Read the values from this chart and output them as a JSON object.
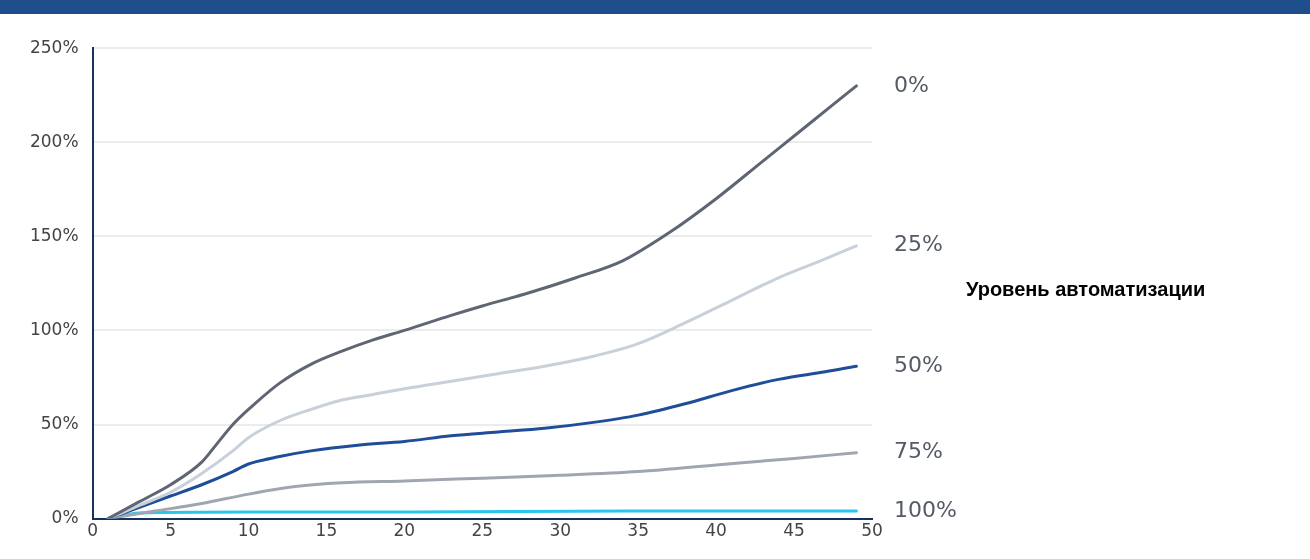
{
  "chart_data": {
    "type": "line",
    "legend_title": "Уровень автоматизации",
    "xlim": [
      0,
      50
    ],
    "xticks": [
      0,
      5,
      10,
      15,
      20,
      25,
      30,
      35,
      40,
      45,
      50
    ],
    "ylim": [
      0,
      250
    ],
    "yticks": [
      {
        "value": 0,
        "label": "0%"
      },
      {
        "value": 50,
        "label": "50%"
      },
      {
        "value": 100,
        "label": "100%"
      },
      {
        "value": 150,
        "label": "150%"
      },
      {
        "value": 200,
        "label": "200%"
      },
      {
        "value": 250,
        "label": "250%"
      }
    ],
    "grid": "y",
    "legend": false,
    "marker": "none",
    "line_style": "solid",
    "series": [
      {
        "name": "0%",
        "color": "#5f6673",
        "x": [
          1,
          3,
          5,
          7,
          8,
          9,
          10,
          12,
          14,
          16,
          18,
          20,
          23,
          25,
          28,
          31,
          34,
          37,
          40,
          43,
          46,
          49
        ],
        "values": [
          0,
          9,
          18,
          30,
          40,
          50,
          58,
          72,
          82,
          89,
          95,
          100,
          108,
          113,
          120,
          128,
          137,
          152,
          170,
          190,
          210,
          230
        ]
      },
      {
        "name": "25%",
        "color": "#c8d0da",
        "x": [
          1,
          3,
          5,
          7,
          9,
          10,
          12,
          14,
          16,
          18,
          20,
          23,
          26,
          29,
          32,
          35,
          38,
          41,
          44,
          47,
          49
        ],
        "values": [
          0,
          7,
          14,
          24,
          36,
          43,
          52,
          58,
          63,
          66,
          69,
          73,
          77,
          81,
          86,
          93,
          104,
          116,
          128,
          138,
          145
        ]
      },
      {
        "name": "50%",
        "color": "#1f4e99",
        "x": [
          1,
          3,
          5,
          7,
          9,
          10,
          12,
          14,
          17,
          20,
          23,
          26,
          29,
          32,
          35,
          38,
          41,
          44,
          47,
          49
        ],
        "values": [
          0,
          6,
          12,
          18,
          25,
          29,
          33,
          36,
          39,
          41,
          44,
          46,
          48,
          51,
          55,
          61,
          68,
          74,
          78,
          81
        ]
      },
      {
        "name": "75%",
        "color": "#a0a6b0",
        "x": [
          1,
          4,
          7,
          10,
          13,
          16,
          20,
          25,
          30,
          35,
          40,
          45,
          49
        ],
        "values": [
          0,
          4,
          8,
          13,
          17,
          19,
          20,
          21.5,
          23,
          25,
          28.5,
          32,
          35
        ]
      },
      {
        "name": "100%",
        "color": "#29c4f0",
        "x": [
          1,
          3,
          10,
          20,
          35,
          49
        ],
        "values": [
          0,
          3,
          3.5,
          3.5,
          4,
          4
        ]
      }
    ]
  }
}
